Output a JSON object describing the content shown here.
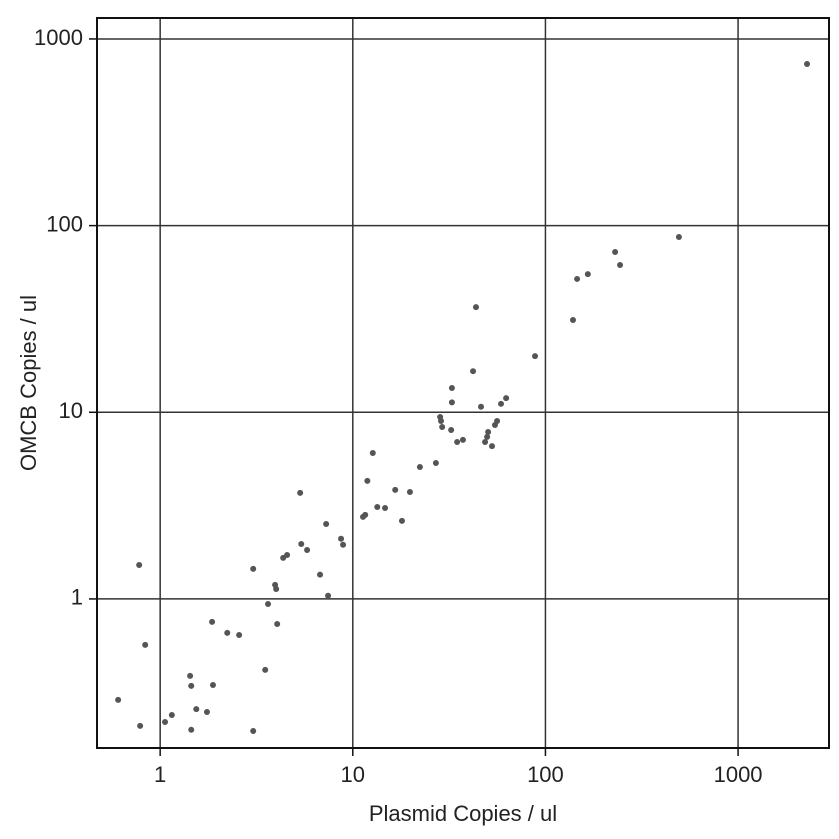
{
  "chart_data": {
    "type": "scatter",
    "xlabel": "Plasmid Copies / ul",
    "ylabel": "OMCB Copies / ul",
    "xscale": "log",
    "yscale": "log",
    "grid": true,
    "color": "#555555",
    "xlim": [
      0.47,
      2965
    ],
    "ylim": [
      0.159,
      1295
    ],
    "xticks": [
      1,
      10,
      100,
      1000
    ],
    "yticks": [
      1,
      10,
      100,
      1000
    ],
    "x": [
      0.605,
      0.778,
      0.787,
      0.836,
      1.06,
      1.15,
      1.43,
      1.45,
      1.45,
      1.54,
      1.75,
      1.86,
      1.88,
      2.23,
      2.57,
      3.04,
      3.04,
      3.51,
      3.63,
      3.95,
      4.0,
      4.05,
      4.35,
      4.56,
      5.33,
      5.4,
      5.79,
      6.76,
      7.27,
      7.44,
      8.69,
      8.9,
      11.3,
      11.6,
      11.9,
      12.7,
      13.4,
      14.7,
      16.6,
      18.0,
      19.8,
      22.3,
      27.0,
      28.4,
      28.7,
      29.1,
      32.4,
      32.7,
      32.7,
      34.8,
      37.3,
      42.1,
      43.6,
      46.3,
      48.6,
      49.8,
      50.4,
      52.8,
      54.7,
      56.1,
      58.8,
      62.5,
      88.3,
      139,
      146,
      166,
      230,
      244,
      493,
      2280
    ],
    "values": [
      0.288,
      1.52,
      0.209,
      0.567,
      0.219,
      0.239,
      0.387,
      0.342,
      0.199,
      0.257,
      0.248,
      0.753,
      0.346,
      0.658,
      0.641,
      1.45,
      0.196,
      0.417,
      0.94,
      1.19,
      1.13,
      0.734,
      1.66,
      1.72,
      3.7,
      1.97,
      1.83,
      1.35,
      2.52,
      1.04,
      2.1,
      1.95,
      2.75,
      2.82,
      4.29,
      6.05,
      3.11,
      3.07,
      3.84,
      2.62,
      3.74,
      5.09,
      5.35,
      9.44,
      8.98,
      8.34,
      8.04,
      13.5,
      11.3,
      6.93,
      7.11,
      16.6,
      36.6,
      10.7,
      6.93,
      7.38,
      7.84,
      6.59,
      8.55,
      8.98,
      11.1,
      11.9,
      20.0,
      31.2,
      51.8,
      55.0,
      72.2,
      61.5,
      86.9,
      734
    ]
  }
}
